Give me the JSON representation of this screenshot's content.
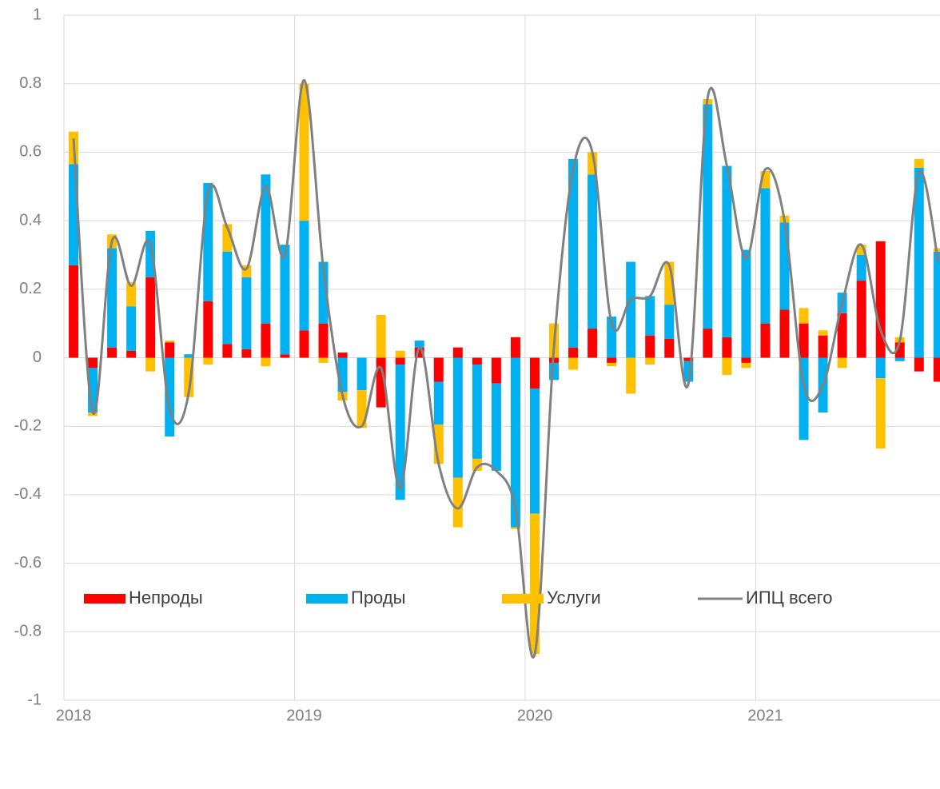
{
  "chart_data": {
    "type": "stacked_bar_line",
    "categories": [
      "2018",
      null,
      null,
      null,
      null,
      null,
      null,
      null,
      null,
      null,
      null,
      null,
      "2019",
      null,
      null,
      null,
      null,
      null,
      null,
      null,
      null,
      null,
      null,
      null,
      "2020",
      null,
      null,
      null,
      null,
      null,
      null,
      null,
      null,
      null,
      null,
      null,
      "2021",
      null,
      null,
      null,
      null,
      null,
      null,
      null,
      null,
      null
    ],
    "series": [
      {
        "name": "Непроды",
        "color": "#ff0000",
        "kind": "bar",
        "values": [
          0.27,
          -0.03,
          0.03,
          0.02,
          0.235,
          0.045,
          0,
          0.165,
          0.04,
          0.025,
          0.1,
          0.01,
          0.08,
          0.1,
          0.015,
          0,
          -0.145,
          -0.02,
          0.03,
          -0.07,
          0.03,
          -0.02,
          -0.075,
          0.06,
          -0.09,
          -0.015,
          0.03,
          0.085,
          -0.015,
          0,
          0.065,
          0.055,
          -0.01,
          0.085,
          0.06,
          -0.015,
          0.1,
          0.14,
          0.1,
          0.065,
          0.13,
          0.225,
          0.34,
          0.045,
          -0.04,
          -0.07
        ]
      },
      {
        "name": "Проды",
        "color": "#00b0f0",
        "kind": "bar",
        "values": [
          0.295,
          -0.13,
          0.29,
          0.13,
          0.135,
          -0.23,
          0.01,
          0.345,
          0.27,
          0.21,
          0.435,
          0.32,
          0.32,
          0.18,
          -0.1,
          -0.095,
          0,
          -0.395,
          0.02,
          -0.125,
          -0.35,
          -0.275,
          -0.255,
          -0.495,
          -0.365,
          -0.05,
          0.55,
          0.45,
          0.12,
          0.28,
          0.115,
          0.1,
          -0.06,
          0.655,
          0.5,
          0.315,
          0.395,
          0.255,
          -0.24,
          -0.16,
          0.06,
          0.075,
          -0.06,
          -0.01,
          0.555,
          0.31
        ]
      },
      {
        "name": "Услуги",
        "color": "#ffc000",
        "kind": "bar",
        "values": [
          0.095,
          -0.01,
          0.04,
          0.07,
          -0.04,
          0.005,
          -0.115,
          -0.02,
          0.08,
          0.035,
          -0.025,
          0,
          0.4,
          -0.015,
          -0.025,
          -0.11,
          0.125,
          0.02,
          0,
          -0.115,
          -0.145,
          -0.035,
          0,
          -0.005,
          -0.41,
          0.1,
          -0.035,
          0.065,
          -0.01,
          -0.105,
          -0.02,
          0.125,
          0,
          0.015,
          -0.05,
          -0.015,
          0.05,
          0.02,
          0.045,
          0.015,
          -0.03,
          0.03,
          -0.205,
          0.015,
          0.025,
          0.01
        ]
      },
      {
        "name": "ИПЦ всего",
        "color": "#808080",
        "kind": "line",
        "values": [
          0.64,
          -0.16,
          0.34,
          0.21,
          0.33,
          -0.15,
          -0.1,
          0.48,
          0.38,
          0.26,
          0.5,
          0.3,
          0.81,
          0.26,
          -0.11,
          -0.2,
          -0.03,
          -0.38,
          0.03,
          -0.31,
          -0.44,
          -0.32,
          -0.33,
          -0.44,
          -0.865,
          0.03,
          0.55,
          0.6,
          0.1,
          0.17,
          0.18,
          0.27,
          -0.075,
          0.76,
          0.56,
          0.29,
          0.55,
          0.4,
          -0.08,
          -0.08,
          0.16,
          0.33,
          0.08,
          0.05,
          0.54,
          0.28
        ]
      }
    ],
    "ylim": [
      -1,
      1
    ],
    "yticks": [
      -1,
      -0.8,
      -0.6,
      -0.4,
      -0.2,
      0,
      0.2,
      0.4,
      0.6,
      0.8,
      1
    ],
    "grid": true,
    "legend": "bottom"
  }
}
